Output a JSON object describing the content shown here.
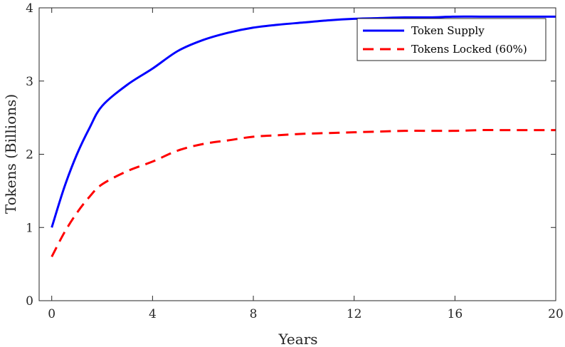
{
  "chart_data": {
    "type": "line",
    "title": "",
    "xlabel": "Years",
    "ylabel": "Tokens (Billions)",
    "xlim": [
      -0.5,
      20
    ],
    "ylim": [
      0,
      4
    ],
    "xticks": [
      0,
      4,
      8,
      12,
      16,
      20
    ],
    "yticks": [
      0,
      1,
      2,
      3,
      4
    ],
    "grid": false,
    "legend_position": "top-right",
    "x": [
      0,
      0.5,
      1,
      1.5,
      2,
      3,
      4,
      5,
      6,
      7,
      8,
      9,
      10,
      11,
      12,
      13,
      14,
      15,
      16,
      17,
      18,
      19,
      20
    ],
    "series": [
      {
        "name": "Token Supply",
        "color": "#0000ff",
        "dash": "solid",
        "values": [
          1.0,
          1.55,
          2.0,
          2.36,
          2.66,
          2.95,
          3.17,
          3.41,
          3.56,
          3.66,
          3.73,
          3.77,
          3.8,
          3.83,
          3.85,
          3.86,
          3.87,
          3.87,
          3.88,
          3.88,
          3.88,
          3.88,
          3.88
        ]
      },
      {
        "name": "Tokens Locked (60%)",
        "color": "#ff0000",
        "dash": "dashed",
        "values": [
          0.6,
          0.93,
          1.2,
          1.42,
          1.59,
          1.77,
          1.9,
          2.05,
          2.14,
          2.19,
          2.24,
          2.26,
          2.28,
          2.29,
          2.3,
          2.31,
          2.32,
          2.32,
          2.32,
          2.33,
          2.33,
          2.33,
          2.33
        ]
      }
    ]
  }
}
